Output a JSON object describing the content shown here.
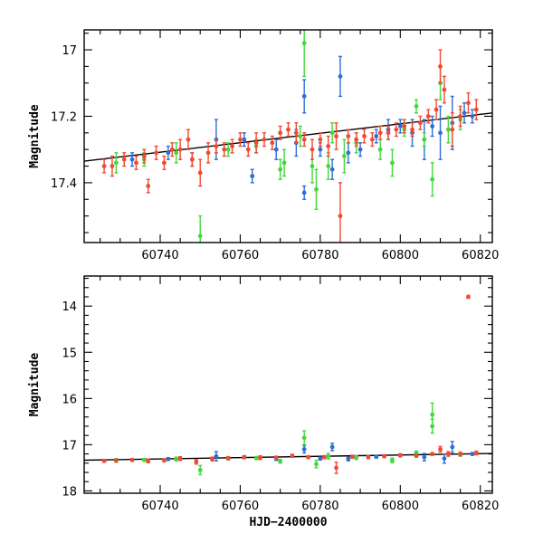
{
  "chart_data": [
    {
      "type": "scatter",
      "panel": "top",
      "title": "",
      "xlabel": "",
      "ylabel": "Magnitude",
      "xlim": [
        60721,
        60823
      ],
      "ylim": [
        17.58,
        16.94
      ],
      "y_inverted": true,
      "xticks": [
        60740,
        60760,
        60780,
        60800,
        60820
      ],
      "xtick_labels": [
        "60740",
        "60760",
        "60780",
        "60800",
        "60820"
      ],
      "yticks": [
        17.0,
        17.2,
        17.4
      ],
      "ytick_labels": [
        "17",
        "17.2",
        "17.4"
      ],
      "fit_line": {
        "x": [
          60721,
          60823
        ],
        "y": [
          17.335,
          17.19
        ]
      },
      "series": [
        {
          "color": "#2e6fd6",
          "points": [
            [
              60733,
              17.33,
              0.02
            ],
            [
              60742,
              17.31,
              0.02
            ],
            [
              60748,
              17.33,
              0.02
            ],
            [
              60754,
              17.27,
              0.06
            ],
            [
              60761,
              17.27,
              0.02
            ],
            [
              60763,
              17.38,
              0.02
            ],
            [
              60769,
              17.3,
              0.03
            ],
            [
              60774,
              17.28,
              0.04
            ],
            [
              60776,
              17.43,
              0.02
            ],
            [
              60776,
              17.14,
              0.05
            ],
            [
              60780,
              17.3,
              0.02
            ],
            [
              60783,
              17.36,
              0.03
            ],
            [
              60785,
              17.08,
              0.06
            ],
            [
              60787,
              17.31,
              0.03
            ],
            [
              60790,
              17.3,
              0.02
            ],
            [
              60794,
              17.26,
              0.02
            ],
            [
              60797,
              17.24,
              0.03
            ],
            [
              60800,
              17.23,
              0.02
            ],
            [
              60803,
              17.25,
              0.04
            ],
            [
              60806,
              17.27,
              0.06
            ],
            [
              60808,
              17.23,
              0.03
            ],
            [
              60810,
              17.25,
              0.08
            ],
            [
              60813,
              17.22,
              0.08
            ],
            [
              60816,
              17.19,
              0.03
            ],
            [
              60818,
              17.2,
              0.02
            ]
          ]
        },
        {
          "color": "#44d83c",
          "points": [
            [
              60729,
              17.34,
              0.03
            ],
            [
              60736,
              17.33,
              0.02
            ],
            [
              60744,
              17.31,
              0.03
            ],
            [
              60750,
              17.56,
              0.06
            ],
            [
              60757,
              17.3,
              0.02
            ],
            [
              60764,
              17.29,
              0.02
            ],
            [
              60770,
              17.36,
              0.03
            ],
            [
              60771,
              17.34,
              0.04
            ],
            [
              60775,
              17.26,
              0.03
            ],
            [
              60776,
              16.98,
              0.1
            ],
            [
              60778,
              17.35,
              0.05
            ],
            [
              60779,
              17.42,
              0.06
            ],
            [
              60782,
              17.35,
              0.04
            ],
            [
              60783,
              17.25,
              0.03
            ],
            [
              60786,
              17.32,
              0.05
            ],
            [
              60789,
              17.28,
              0.03
            ],
            [
              60795,
              17.3,
              0.03
            ],
            [
              60798,
              17.34,
              0.04
            ],
            [
              60801,
              17.24,
              0.02
            ],
            [
              60804,
              17.17,
              0.02
            ],
            [
              60806,
              17.27,
              0.02
            ],
            [
              60808,
              17.39,
              0.05
            ],
            [
              60810,
              17.1,
              0.05
            ],
            [
              60812,
              17.24,
              0.04
            ],
            [
              60815,
              17.21,
              0.03
            ]
          ]
        },
        {
          "color": "#f04a33",
          "points": [
            [
              60726,
              17.35,
              0.02
            ],
            [
              60728,
              17.35,
              0.03
            ],
            [
              60731,
              17.33,
              0.02
            ],
            [
              60734,
              17.34,
              0.02
            ],
            [
              60736,
              17.32,
              0.02
            ],
            [
              60737,
              17.41,
              0.02
            ],
            [
              60739,
              17.31,
              0.02
            ],
            [
              60741,
              17.34,
              0.02
            ],
            [
              60743,
              17.3,
              0.02
            ],
            [
              60745,
              17.3,
              0.03
            ],
            [
              60747,
              17.27,
              0.03
            ],
            [
              60748,
              17.33,
              0.02
            ],
            [
              60750,
              17.37,
              0.04
            ],
            [
              60752,
              17.31,
              0.03
            ],
            [
              60754,
              17.29,
              0.02
            ],
            [
              60756,
              17.3,
              0.02
            ],
            [
              60758,
              17.29,
              0.02
            ],
            [
              60760,
              17.27,
              0.02
            ],
            [
              60762,
              17.3,
              0.02
            ],
            [
              60764,
              17.28,
              0.03
            ],
            [
              60766,
              17.27,
              0.02
            ],
            [
              60768,
              17.28,
              0.02
            ],
            [
              60770,
              17.25,
              0.02
            ],
            [
              60772,
              17.24,
              0.02
            ],
            [
              60774,
              17.25,
              0.03
            ],
            [
              60776,
              17.27,
              0.02
            ],
            [
              60778,
              17.3,
              0.03
            ],
            [
              60780,
              17.27,
              0.02
            ],
            [
              60782,
              17.29,
              0.03
            ],
            [
              60784,
              17.26,
              0.04
            ],
            [
              60785,
              17.5,
              0.1
            ],
            [
              60787,
              17.26,
              0.02
            ],
            [
              60789,
              17.27,
              0.02
            ],
            [
              60791,
              17.26,
              0.02
            ],
            [
              60793,
              17.27,
              0.02
            ],
            [
              60795,
              17.25,
              0.02
            ],
            [
              60797,
              17.25,
              0.02
            ],
            [
              60799,
              17.24,
              0.02
            ],
            [
              60801,
              17.23,
              0.02
            ],
            [
              60803,
              17.24,
              0.02
            ],
            [
              60805,
              17.22,
              0.02
            ],
            [
              60807,
              17.2,
              0.02
            ],
            [
              60809,
              17.18,
              0.03
            ],
            [
              60810,
              17.05,
              0.05
            ],
            [
              60811,
              17.12,
              0.04
            ],
            [
              60813,
              17.24,
              0.05
            ],
            [
              60815,
              17.2,
              0.03
            ],
            [
              60817,
              17.16,
              0.03
            ],
            [
              60819,
              17.18,
              0.03
            ]
          ]
        }
      ]
    },
    {
      "type": "scatter",
      "panel": "bottom",
      "title": "",
      "xlabel": "HJD−2400000",
      "ylabel": "Magnitude",
      "xlim": [
        60721,
        60823
      ],
      "ylim": [
        18.05,
        13.35
      ],
      "y_inverted": true,
      "xticks": [
        60740,
        60760,
        60780,
        60800,
        60820
      ],
      "xtick_labels": [
        "60740",
        "60760",
        "60780",
        "60800",
        "60820"
      ],
      "yticks": [
        14,
        15,
        16,
        17,
        18
      ],
      "ytick_labels": [
        "14",
        "15",
        "16",
        "17",
        "18"
      ],
      "fit_line": {
        "x": [
          60721,
          60823
        ],
        "y": [
          17.335,
          17.19
        ]
      },
      "series": [
        {
          "color": "#2e6fd6",
          "points": [
            [
              60733,
              17.33,
              0.03
            ],
            [
              60742,
              17.31,
              0.03
            ],
            [
              60754,
              17.25,
              0.1
            ],
            [
              60761,
              17.27,
              0.03
            ],
            [
              60769,
              17.3,
              0.04
            ],
            [
              60776,
              17.1,
              0.08
            ],
            [
              60780,
              17.3,
              0.03
            ],
            [
              60783,
              17.05,
              0.08
            ],
            [
              60787,
              17.31,
              0.04
            ],
            [
              60794,
              17.26,
              0.03
            ],
            [
              60800,
              17.23,
              0.03
            ],
            [
              60806,
              17.27,
              0.08
            ],
            [
              60811,
              17.3,
              0.1
            ],
            [
              60813,
              17.05,
              0.12
            ],
            [
              60818,
              17.2,
              0.03
            ]
          ]
        },
        {
          "color": "#44d83c",
          "points": [
            [
              60729,
              17.34,
              0.04
            ],
            [
              60736,
              17.33,
              0.03
            ],
            [
              60744,
              17.31,
              0.04
            ],
            [
              60750,
              17.55,
              0.1
            ],
            [
              60757,
              17.3,
              0.03
            ],
            [
              60764,
              17.29,
              0.03
            ],
            [
              60770,
              17.36,
              0.04
            ],
            [
              60776,
              16.85,
              0.15
            ],
            [
              60779,
              17.42,
              0.08
            ],
            [
              60782,
              17.25,
              0.06
            ],
            [
              60789,
              17.28,
              0.04
            ],
            [
              60798,
              17.34,
              0.05
            ],
            [
              60804,
              17.17,
              0.03
            ],
            [
              60808,
              16.35,
              0.25
            ],
            [
              60808,
              16.6,
              0.15
            ],
            [
              60815,
              17.21,
              0.04
            ]
          ]
        },
        {
          "color": "#f04a33",
          "points": [
            [
              60726,
              17.35,
              0.03
            ],
            [
              60729,
              17.34,
              0.03
            ],
            [
              60733,
              17.33,
              0.03
            ],
            [
              60737,
              17.35,
              0.04
            ],
            [
              60741,
              17.34,
              0.03
            ],
            [
              60745,
              17.3,
              0.04
            ],
            [
              60749,
              17.37,
              0.05
            ],
            [
              60753,
              17.31,
              0.04
            ],
            [
              60757,
              17.29,
              0.03
            ],
            [
              60761,
              17.27,
              0.03
            ],
            [
              60765,
              17.28,
              0.04
            ],
            [
              60769,
              17.28,
              0.03
            ],
            [
              60773,
              17.24,
              0.03
            ],
            [
              60777,
              17.27,
              0.03
            ],
            [
              60781,
              17.27,
              0.03
            ],
            [
              60784,
              17.5,
              0.12
            ],
            [
              60788,
              17.26,
              0.03
            ],
            [
              60792,
              17.27,
              0.03
            ],
            [
              60796,
              17.25,
              0.03
            ],
            [
              60800,
              17.23,
              0.03
            ],
            [
              60804,
              17.24,
              0.03
            ],
            [
              60808,
              17.2,
              0.03
            ],
            [
              60810,
              17.1,
              0.06
            ],
            [
              60812,
              17.2,
              0.05
            ],
            [
              60815,
              17.2,
              0.04
            ],
            [
              60817,
              13.8,
              0.03
            ],
            [
              60819,
              17.18,
              0.04
            ]
          ]
        }
      ]
    }
  ]
}
